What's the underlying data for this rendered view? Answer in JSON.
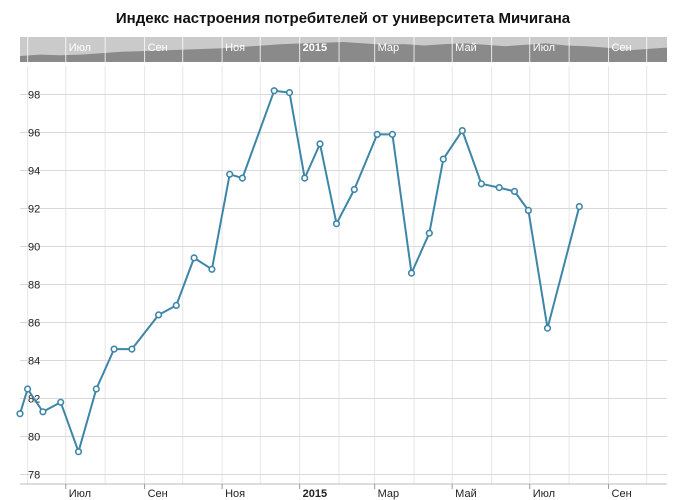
{
  "chart_data": {
    "type": "line",
    "title": "Индекс настроения потребителей от университета Мичигана",
    "xlabel": "",
    "ylabel": "",
    "ylim": [
      77.5,
      99.5
    ],
    "yticks": [
      78,
      80,
      82,
      84,
      86,
      88,
      90,
      92,
      94,
      96,
      98
    ],
    "grid": true,
    "xrange": [
      "2014-05-26",
      "2015-10-17"
    ],
    "xticks": [
      {
        "date": "2014-07-01",
        "label": "Июл",
        "bold": false
      },
      {
        "date": "2014-09-01",
        "label": "Сен",
        "bold": false
      },
      {
        "date": "2014-11-01",
        "label": "Ноя",
        "bold": false
      },
      {
        "date": "2015-01-01",
        "label": "2015",
        "bold": true
      },
      {
        "date": "2015-03-01",
        "label": "Мар",
        "bold": false
      },
      {
        "date": "2015-05-01",
        "label": "Май",
        "bold": false
      },
      {
        "date": "2015-07-01",
        "label": "Июл",
        "bold": false
      },
      {
        "date": "2015-09-01",
        "label": "Сен",
        "bold": false
      }
    ],
    "series": [
      {
        "color": "#3d86a8",
        "points": [
          {
            "x": "2014-05-26",
            "y": 81.2
          },
          {
            "x": "2014-06-01",
            "y": 82.5
          },
          {
            "x": "2014-06-13",
            "y": 81.3
          },
          {
            "x": "2014-06-27",
            "y": 81.8
          },
          {
            "x": "2014-07-11",
            "y": 79.2
          },
          {
            "x": "2014-07-25",
            "y": 82.5
          },
          {
            "x": "2014-08-08",
            "y": 84.6
          },
          {
            "x": "2014-08-22",
            "y": 84.6
          },
          {
            "x": "2014-09-12",
            "y": 86.4
          },
          {
            "x": "2014-09-26",
            "y": 86.9
          },
          {
            "x": "2014-10-10",
            "y": 89.4
          },
          {
            "x": "2014-10-24",
            "y": 88.8
          },
          {
            "x": "2014-11-07",
            "y": 93.8
          },
          {
            "x": "2014-11-17",
            "y": 93.6
          },
          {
            "x": "2014-12-12",
            "y": 98.2
          },
          {
            "x": "2014-12-24",
            "y": 98.1
          },
          {
            "x": "2015-01-05",
            "y": 93.6
          },
          {
            "x": "2015-01-17",
            "y": 95.4
          },
          {
            "x": "2015-01-30",
            "y": 91.2
          },
          {
            "x": "2015-02-13",
            "y": 93.0
          },
          {
            "x": "2015-03-03",
            "y": 95.9
          },
          {
            "x": "2015-03-15",
            "y": 95.9
          },
          {
            "x": "2015-03-30",
            "y": 88.6
          },
          {
            "x": "2015-04-13",
            "y": 90.7
          },
          {
            "x": "2015-04-24",
            "y": 94.6
          },
          {
            "x": "2015-05-09",
            "y": 96.1
          },
          {
            "x": "2015-05-24",
            "y": 93.3
          },
          {
            "x": "2015-06-07",
            "y": 93.1
          },
          {
            "x": "2015-06-19",
            "y": 92.9
          },
          {
            "x": "2015-06-30",
            "y": 91.9
          },
          {
            "x": "2015-07-15",
            "y": 85.7
          },
          {
            "x": "2015-08-09",
            "y": 92.1
          }
        ]
      }
    ],
    "navigator": {
      "fill": "#8a8a8a",
      "background": "#d4d4d4",
      "selected": "#c0c0c0",
      "profile": [
        78,
        80,
        79,
        80,
        82,
        84,
        85,
        86,
        87,
        88,
        89,
        91,
        93,
        95,
        96,
        97,
        98,
        96,
        94,
        95,
        93,
        95,
        96,
        94,
        92,
        94,
        96,
        93,
        92,
        90,
        86,
        88,
        90
      ]
    }
  }
}
